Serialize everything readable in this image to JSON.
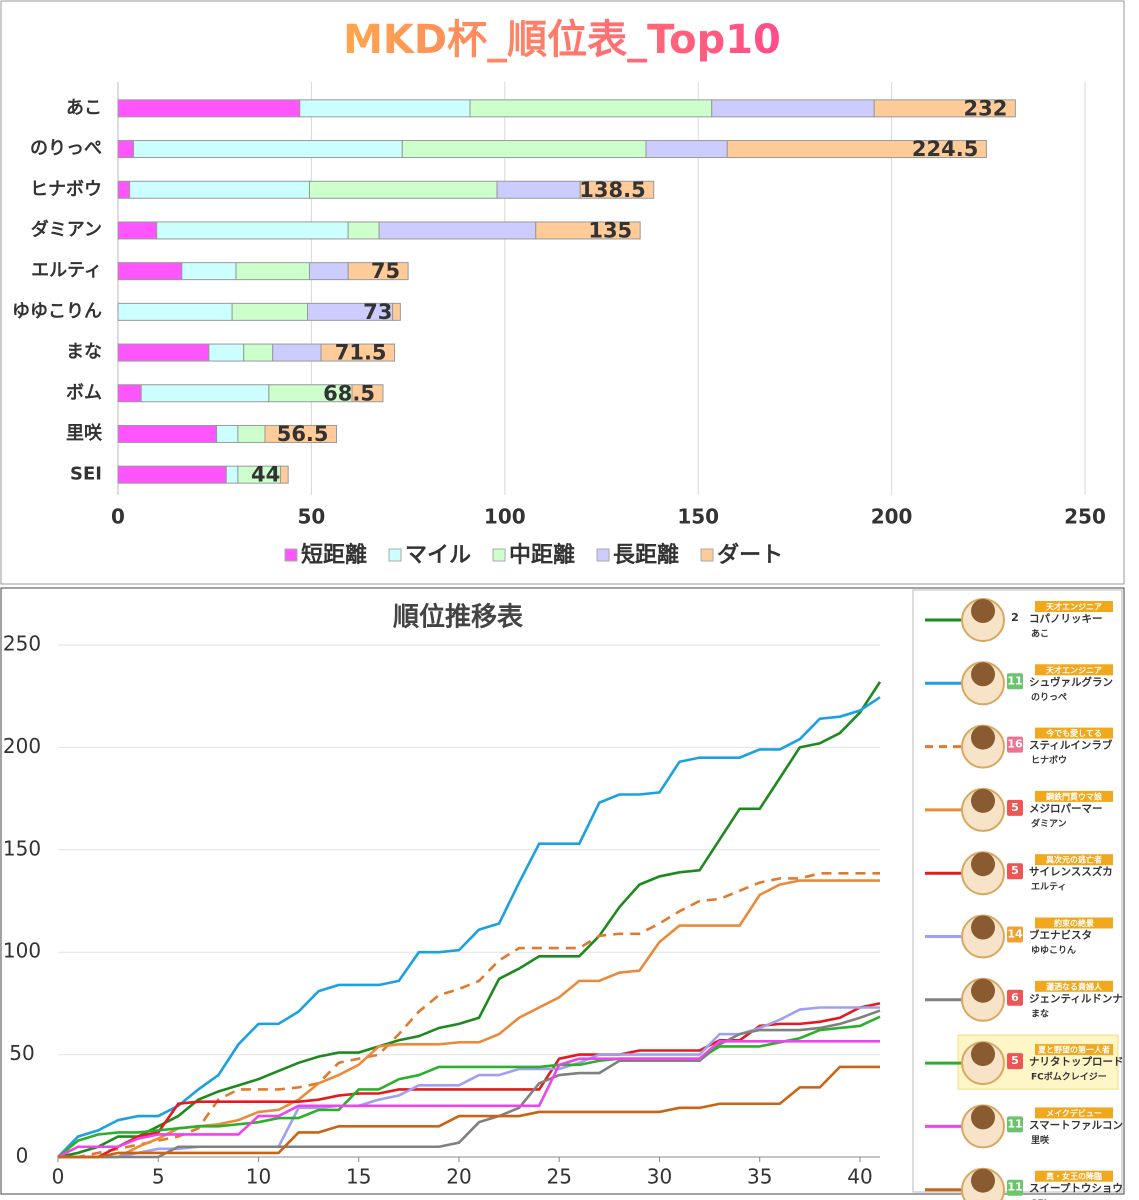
{
  "chart_data": [
    {
      "type": "bar",
      "orientation": "horizontal",
      "stacked": true,
      "title": "MKD杯_順位表_Top10",
      "categories": [
        "あこ",
        "のりっぺ",
        "ヒナボウ",
        "ダミアン",
        "エルティ",
        "ゆゆこりん",
        "まな",
        "ボム",
        "里咲",
        "SEI"
      ],
      "series": [
        {
          "name": "短距離",
          "color": "#ff55ff",
          "values": [
            47,
            4,
            3,
            10,
            16.5,
            0,
            23.5,
            6,
            25.5,
            28
          ]
        },
        {
          "name": "マイル",
          "color": "#ccffff",
          "values": [
            44,
            69.5,
            46.5,
            49.5,
            14,
            29.5,
            9,
            33,
            5.5,
            3
          ]
        },
        {
          "name": "中距離",
          "color": "#ccffcc",
          "values": [
            62.5,
            63,
            48.5,
            8,
            19,
            19.5,
            7.5,
            21.5,
            7,
            11
          ]
        },
        {
          "name": "長距離",
          "color": "#ccccff",
          "values": [
            42,
            21,
            21.5,
            40.5,
            10,
            22,
            12.5,
            0,
            0,
            0
          ]
        },
        {
          "name": "ダート",
          "color": "#ffcc99",
          "values": [
            36.5,
            67,
            19,
            27,
            15.5,
            2,
            19,
            8,
            18.5,
            2
          ]
        }
      ],
      "total_labels": [
        232,
        224.5,
        138.5,
        135,
        75,
        73,
        71.5,
        68.5,
        56.5,
        44
      ],
      "xlim": [
        0,
        250
      ],
      "xticks": [
        0,
        50,
        100,
        150,
        200,
        250
      ],
      "grid": true,
      "legend": "bottom"
    },
    {
      "type": "line",
      "title": "順位推移表",
      "x": [
        0,
        1,
        2,
        3,
        4,
        5,
        6,
        7,
        8,
        9,
        10,
        11,
        12,
        13,
        14,
        15,
        16,
        17,
        18,
        19,
        20,
        21,
        22,
        23,
        24,
        25,
        26,
        27,
        28,
        29,
        30,
        31,
        32,
        33,
        34,
        35,
        36,
        37,
        38,
        39,
        40,
        41
      ],
      "xlim": [
        0,
        41
      ],
      "xticks": [
        0,
        5,
        10,
        15,
        20,
        25,
        30,
        35,
        40
      ],
      "ylim": [
        0,
        250
      ],
      "yticks": [
        0,
        50,
        100,
        150,
        200,
        250
      ],
      "grid": true,
      "legend": "right",
      "series": [
        {
          "name": "あこ",
          "character": "コパノリッキー",
          "epithet": "天才エンジニア",
          "rank": 2,
          "rank_color": "#ffffff",
          "color": "#1e8a1e",
          "dash": false,
          "values": [
            0,
            2,
            5,
            10,
            10,
            15,
            20,
            28,
            32,
            35,
            38,
            42,
            46,
            49,
            51,
            51,
            54,
            57,
            59,
            63,
            65,
            68,
            87,
            92,
            98,
            98,
            98,
            108,
            122,
            133,
            137,
            139,
            140,
            155,
            170,
            170,
            185,
            200,
            202,
            207,
            217,
            232
          ]
        },
        {
          "name": "のりっぺ",
          "character": "シュヴァルグラン",
          "epithet": "天才エンジニア",
          "rank": 11,
          "rank_color": "#6cc46c",
          "color": "#1ba1e2",
          "dash": false,
          "values": [
            0,
            10,
            13,
            18,
            20,
            20,
            25,
            33,
            40,
            55,
            65,
            65,
            71,
            81,
            84,
            84,
            84,
            86,
            100,
            100,
            101,
            111,
            114,
            134,
            153,
            153,
            153,
            173,
            177,
            177,
            178,
            193,
            195,
            195,
            195,
            199,
            199,
            204,
            214,
            215,
            218,
            224.5
          ]
        },
        {
          "name": "ヒナボウ",
          "character": "スティルインラブ",
          "epithet": "今でも愛してる",
          "rank": 16,
          "rank_color": "#f07090",
          "color": "#e07a2e",
          "dash": true,
          "values": [
            0,
            0,
            2,
            4,
            6,
            8,
            10,
            14,
            28,
            33,
            33,
            33,
            34,
            36,
            46,
            48,
            50,
            60,
            71,
            79,
            82,
            86,
            96,
            102,
            102,
            102,
            102,
            108,
            109,
            109,
            114,
            120,
            125,
            126,
            130,
            134,
            136,
            136,
            138.5,
            138.5,
            138.5,
            138.5
          ]
        },
        {
          "name": "ダミアン",
          "character": "メジロパーマー",
          "epithet": "鋼鉄門貫ウマ娘",
          "rank": 5,
          "rank_color": "#ee5555",
          "color": "#ec8a3c",
          "dash": false,
          "values": [
            0,
            0,
            0,
            0,
            5,
            9,
            14,
            15,
            16,
            18,
            22,
            23,
            28,
            36,
            40,
            45,
            54,
            55,
            55,
            55,
            56,
            56,
            60,
            68,
            73,
            78,
            86,
            86,
            90,
            91,
            105,
            113,
            113,
            113,
            113,
            128,
            133,
            135,
            135,
            135,
            135,
            135
          ]
        },
        {
          "name": "エルティ",
          "character": "サイレンススズカ",
          "epithet": "異次元の逃亡者",
          "rank": 5,
          "rank_color": "#ee5555",
          "color": "#e41a1c",
          "dash": false,
          "values": [
            0,
            0,
            0,
            5,
            10,
            12,
            26,
            27,
            27,
            27,
            27,
            27,
            27,
            28,
            30,
            31,
            31,
            33,
            33,
            33,
            33,
            33,
            33,
            33,
            33,
            48,
            50,
            50,
            50,
            52,
            52,
            52,
            52,
            57,
            57,
            64,
            65,
            65,
            66,
            68,
            73,
            75
          ]
        },
        {
          "name": "ゆゆこりん",
          "character": "ブエナビスタ",
          "epithet": "約束の絶景",
          "rank": 14,
          "rank_color": "#f0a030",
          "color": "#a0a0f0",
          "dash": false,
          "values": [
            0,
            0,
            0,
            0,
            2,
            4,
            4,
            5,
            5,
            5,
            5,
            5,
            24,
            24,
            25,
            25,
            28,
            30,
            35,
            35,
            35,
            40,
            40,
            43,
            43,
            43,
            46,
            50,
            50,
            50,
            50,
            50,
            50,
            60,
            60,
            63,
            67,
            72,
            73,
            73,
            73,
            73
          ]
        },
        {
          "name": "まな",
          "character": "ジェンティルドンナ",
          "epithet": "瀟洒なる貴婦人",
          "rank": 6,
          "rank_color": "#ee5555",
          "color": "#808080",
          "dash": false,
          "values": [
            0,
            0,
            0,
            0,
            0,
            0,
            5,
            5,
            5,
            5,
            5,
            5,
            5,
            5,
            5,
            5,
            5,
            5,
            5,
            5,
            7,
            17,
            20,
            24,
            36,
            40,
            41,
            41,
            47,
            47,
            47,
            47,
            47,
            55,
            60,
            62,
            62,
            62,
            63,
            65,
            68,
            71.5
          ]
        },
        {
          "name": "FCボムクレイジー",
          "character": "ナリタトップロード",
          "epithet": "夏と野望の第一人者",
          "rank": 5,
          "rank_color": "#ee5555",
          "color": "#2cb02c",
          "dash": false,
          "values": [
            0,
            8,
            11,
            12,
            12,
            13,
            14,
            15,
            15,
            16,
            17,
            19,
            19,
            23,
            23,
            33,
            33,
            38,
            40,
            44,
            44,
            44,
            44,
            44,
            44,
            45,
            45,
            47,
            48,
            48,
            48,
            48,
            48,
            54,
            54,
            54,
            56,
            58,
            62,
            63,
            64,
            68.5
          ]
        },
        {
          "name": "里咲",
          "character": "スマートファルコン",
          "epithet": "メイクデビュー",
          "rank": 11,
          "rank_color": "#6cc46c",
          "color": "#ee44ee",
          "dash": false,
          "values": [
            0,
            5,
            5,
            5,
            9,
            11,
            11,
            11,
            11,
            11,
            20,
            20,
            25,
            25,
            25,
            25,
            25,
            25,
            25,
            25,
            25,
            25,
            25,
            25,
            25,
            45,
            48,
            48,
            48,
            48,
            48,
            48,
            48,
            56.5,
            56.5,
            56.5,
            56.5,
            56.5,
            56.5,
            56.5,
            56.5,
            56.5
          ]
        },
        {
          "name": "SEI",
          "character": "スイープトウショウ",
          "epithet": "真・女王の降臨",
          "rank": 11,
          "rank_color": "#6cc46c",
          "color": "#c86414",
          "dash": false,
          "values": [
            0,
            0,
            0,
            2,
            2,
            2,
            2,
            2,
            2,
            2,
            2,
            2,
            12,
            12,
            15,
            15,
            15,
            15,
            15,
            15,
            20,
            20,
            20,
            20,
            22,
            22,
            22,
            22,
            22,
            22,
            22,
            24,
            24,
            26,
            26,
            26,
            26,
            34,
            34,
            44,
            44,
            44
          ]
        }
      ]
    }
  ]
}
